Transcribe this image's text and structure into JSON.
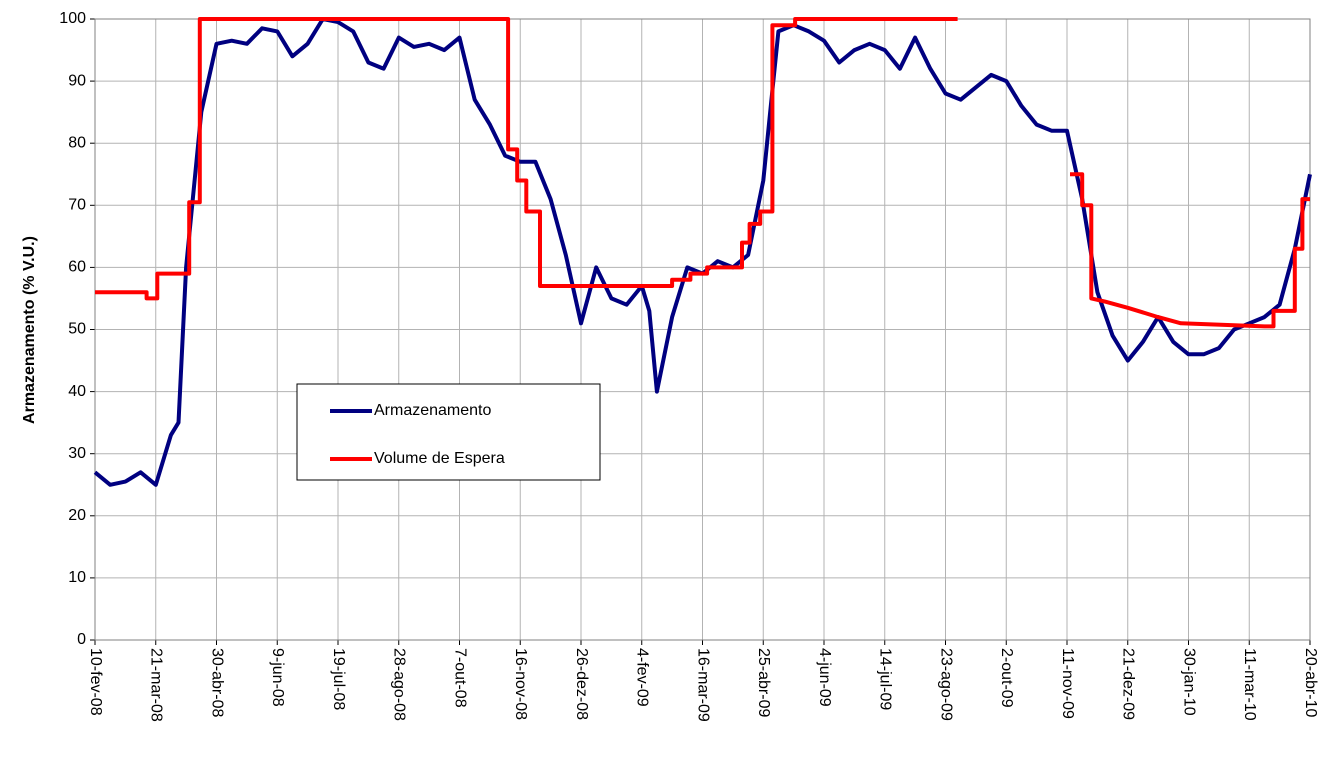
{
  "chart_data": {
    "type": "line",
    "y_label": "Armazenamento (% V.U.)",
    "ylim": [
      0,
      100
    ],
    "yticks": [
      0,
      10,
      20,
      30,
      40,
      50,
      60,
      70,
      80,
      90,
      100
    ],
    "xlim": [
      "2008-02-10",
      "2010-04-20"
    ],
    "xticks": [
      {
        "value": "2008-02-10",
        "label": "10-fev-08"
      },
      {
        "value": "2008-03-21",
        "label": "21-mar-08"
      },
      {
        "value": "2008-04-30",
        "label": "30-abr-08"
      },
      {
        "value": "2008-06-09",
        "label": "9-jun-08"
      },
      {
        "value": "2008-07-19",
        "label": "19-jul-08"
      },
      {
        "value": "2008-08-28",
        "label": "28-ago-08"
      },
      {
        "value": "2008-10-07",
        "label": "7-out-08"
      },
      {
        "value": "2008-11-16",
        "label": "16-nov-08"
      },
      {
        "value": "2008-12-26",
        "label": "26-dez-08"
      },
      {
        "value": "2009-02-04",
        "label": "4-fev-09"
      },
      {
        "value": "2009-03-16",
        "label": "16-mar-09"
      },
      {
        "value": "2009-04-25",
        "label": "25-abr-09"
      },
      {
        "value": "2009-06-04",
        "label": "4-jun-09"
      },
      {
        "value": "2009-07-14",
        "label": "14-jul-09"
      },
      {
        "value": "2009-08-23",
        "label": "23-ago-09"
      },
      {
        "value": "2009-10-02",
        "label": "2-out-09"
      },
      {
        "value": "2009-11-11",
        "label": "11-nov-09"
      },
      {
        "value": "2009-12-21",
        "label": "21-dez-09"
      },
      {
        "value": "2010-01-30",
        "label": "30-jan-10"
      },
      {
        "value": "2010-03-11",
        "label": "11-mar-10"
      },
      {
        "value": "2010-04-20",
        "label": "20-abr-10"
      }
    ],
    "grid": true,
    "series": [
      {
        "name": "Armazenamento",
        "color": "#000080",
        "x": [
          "2008-02-10",
          "2008-02-20",
          "2008-03-01",
          "2008-03-11",
          "2008-03-21",
          "2008-03-31",
          "2008-04-05",
          "2008-04-10",
          "2008-04-20",
          "2008-04-30",
          "2008-05-10",
          "2008-05-20",
          "2008-05-30",
          "2008-06-09",
          "2008-06-19",
          "2008-06-29",
          "2008-07-09",
          "2008-07-19",
          "2008-07-29",
          "2008-08-08",
          "2008-08-18",
          "2008-08-28",
          "2008-09-07",
          "2008-09-17",
          "2008-09-27",
          "2008-10-07",
          "2008-10-17",
          "2008-10-27",
          "2008-11-06",
          "2008-11-16",
          "2008-11-26",
          "2008-12-06",
          "2008-12-16",
          "2008-12-26",
          "2009-01-05",
          "2009-01-15",
          "2009-01-25",
          "2009-02-04",
          "2009-02-09",
          "2009-02-14",
          "2009-02-24",
          "2009-03-06",
          "2009-03-16",
          "2009-03-26",
          "2009-04-05",
          "2009-04-15",
          "2009-04-25",
          "2009-04-30",
          "2009-05-05",
          "2009-05-15",
          "2009-05-25",
          "2009-06-04",
          "2009-06-14",
          "2009-06-24",
          "2009-07-04",
          "2009-07-14",
          "2009-07-24",
          "2009-08-03",
          "2009-08-13",
          "2009-08-23",
          "2009-09-02",
          "2009-09-12",
          "2009-09-22",
          "2009-10-02",
          "2009-10-12",
          "2009-10-22",
          "2009-11-01",
          "2009-11-11",
          "2009-11-21",
          "2009-12-01",
          "2009-12-11",
          "2009-12-21",
          "2009-12-31",
          "2010-01-10",
          "2010-01-20",
          "2010-01-30",
          "2010-02-09",
          "2010-02-19",
          "2010-03-01",
          "2010-03-11",
          "2010-03-21",
          "2010-03-31",
          "2010-04-10",
          "2010-04-20"
        ],
        "values": [
          27,
          25,
          25.5,
          27,
          25,
          33,
          35,
          60,
          85,
          96,
          96.5,
          96,
          98.5,
          98,
          94,
          96,
          100,
          99.5,
          98,
          93,
          92,
          97,
          95.5,
          96,
          95,
          97,
          87,
          83,
          78,
          77,
          77,
          71,
          62,
          51,
          60,
          55,
          54,
          57,
          53,
          40,
          52,
          60,
          59,
          61,
          60,
          62,
          74,
          86,
          98,
          99,
          98,
          96.5,
          93,
          95,
          96,
          95,
          92,
          97,
          92,
          88,
          87,
          89,
          91,
          90,
          86,
          83,
          82,
          82,
          71,
          56,
          49,
          45,
          48,
          52,
          48,
          46,
          46,
          47,
          50,
          51,
          52,
          54,
          63,
          75
        ]
      },
      {
        "name": "Volume de Espera",
        "color": "#ff0000",
        "x": [
          "2008-02-10",
          "2008-03-15",
          "2008-03-15",
          "2008-03-22",
          "2008-03-22",
          "2008-04-12",
          "2008-04-12",
          "2008-04-19",
          "2008-04-19",
          "2008-11-08",
          "2008-11-08",
          "2008-11-14",
          "2008-11-14",
          "2008-11-20",
          "2008-11-20",
          "2008-11-29",
          "2008-11-29",
          "2009-02-24",
          "2009-02-24",
          "2009-03-08",
          "2009-03-08",
          "2009-03-19",
          "2009-03-19",
          "2009-04-11",
          "2009-04-11",
          "2009-04-16",
          "2009-04-16",
          "2009-04-23",
          "2009-04-23",
          "2009-05-01",
          "2009-05-01",
          "2009-05-16",
          "2009-05-16",
          "2009-08-31",
          null,
          "2009-11-13",
          "2009-11-21",
          "2009-11-21",
          "2009-11-27",
          "2009-11-27",
          "2009-12-06",
          "2009-12-21",
          "2010-01-10",
          "2010-01-25",
          "2010-03-21",
          "2010-03-27",
          "2010-03-27",
          "2010-04-10",
          "2010-04-10",
          "2010-04-15",
          "2010-04-15",
          "2010-04-20"
        ],
        "values": [
          56,
          56,
          55,
          55,
          59,
          59,
          70.5,
          70.5,
          100,
          100,
          79,
          79,
          74,
          74,
          69,
          69,
          57,
          57,
          58,
          58,
          59,
          59,
          60,
          60,
          64,
          64,
          67,
          67,
          69,
          69,
          99,
          99,
          100,
          100,
          null,
          75,
          75,
          70,
          70,
          55,
          54.5,
          53.5,
          52,
          51,
          50.5,
          50.5,
          53,
          53,
          63,
          63,
          71,
          71
        ]
      }
    ]
  }
}
